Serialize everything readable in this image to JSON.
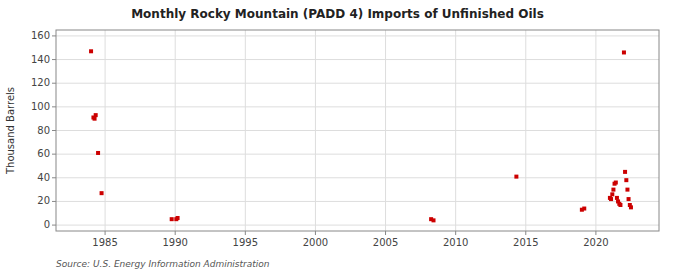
{
  "chart_data": {
    "type": "scatter",
    "title": "Monthly Rocky Mountain (PADD 4) Imports of Unfinished Oils",
    "ylabel": "Thousand Barrels",
    "source": "Source: U.S. Energy Information Administration",
    "color": "#cc0000",
    "marker": "square",
    "grid": true,
    "xlim": [
      1981.5,
      2024.5
    ],
    "ylim": [
      -5,
      165
    ],
    "xticks": [
      1985,
      1990,
      1995,
      2000,
      2005,
      2010,
      2015,
      2020
    ],
    "yticks": [
      0,
      20,
      40,
      60,
      80,
      100,
      120,
      140,
      160
    ],
    "x": [
      1984.0,
      1984.17,
      1984.25,
      1984.33,
      1984.5,
      1984.75,
      1989.75,
      1990.08,
      1990.17,
      2008.25,
      2008.42,
      2014.33,
      2019.0,
      2019.17,
      2021.0,
      2021.08,
      2021.17,
      2021.25,
      2021.33,
      2021.42,
      2021.5,
      2021.58,
      2021.67,
      2021.75,
      2022.0,
      2022.08,
      2022.17,
      2022.25,
      2022.33,
      2022.42,
      2022.5
    ],
    "values": [
      147,
      91,
      90,
      93,
      61,
      27,
      5,
      5,
      6,
      5,
      4,
      41,
      13,
      14,
      23,
      22,
      26,
      30,
      35,
      36,
      23,
      20,
      18,
      17,
      146,
      45,
      38,
      30,
      22,
      17,
      15
    ]
  }
}
